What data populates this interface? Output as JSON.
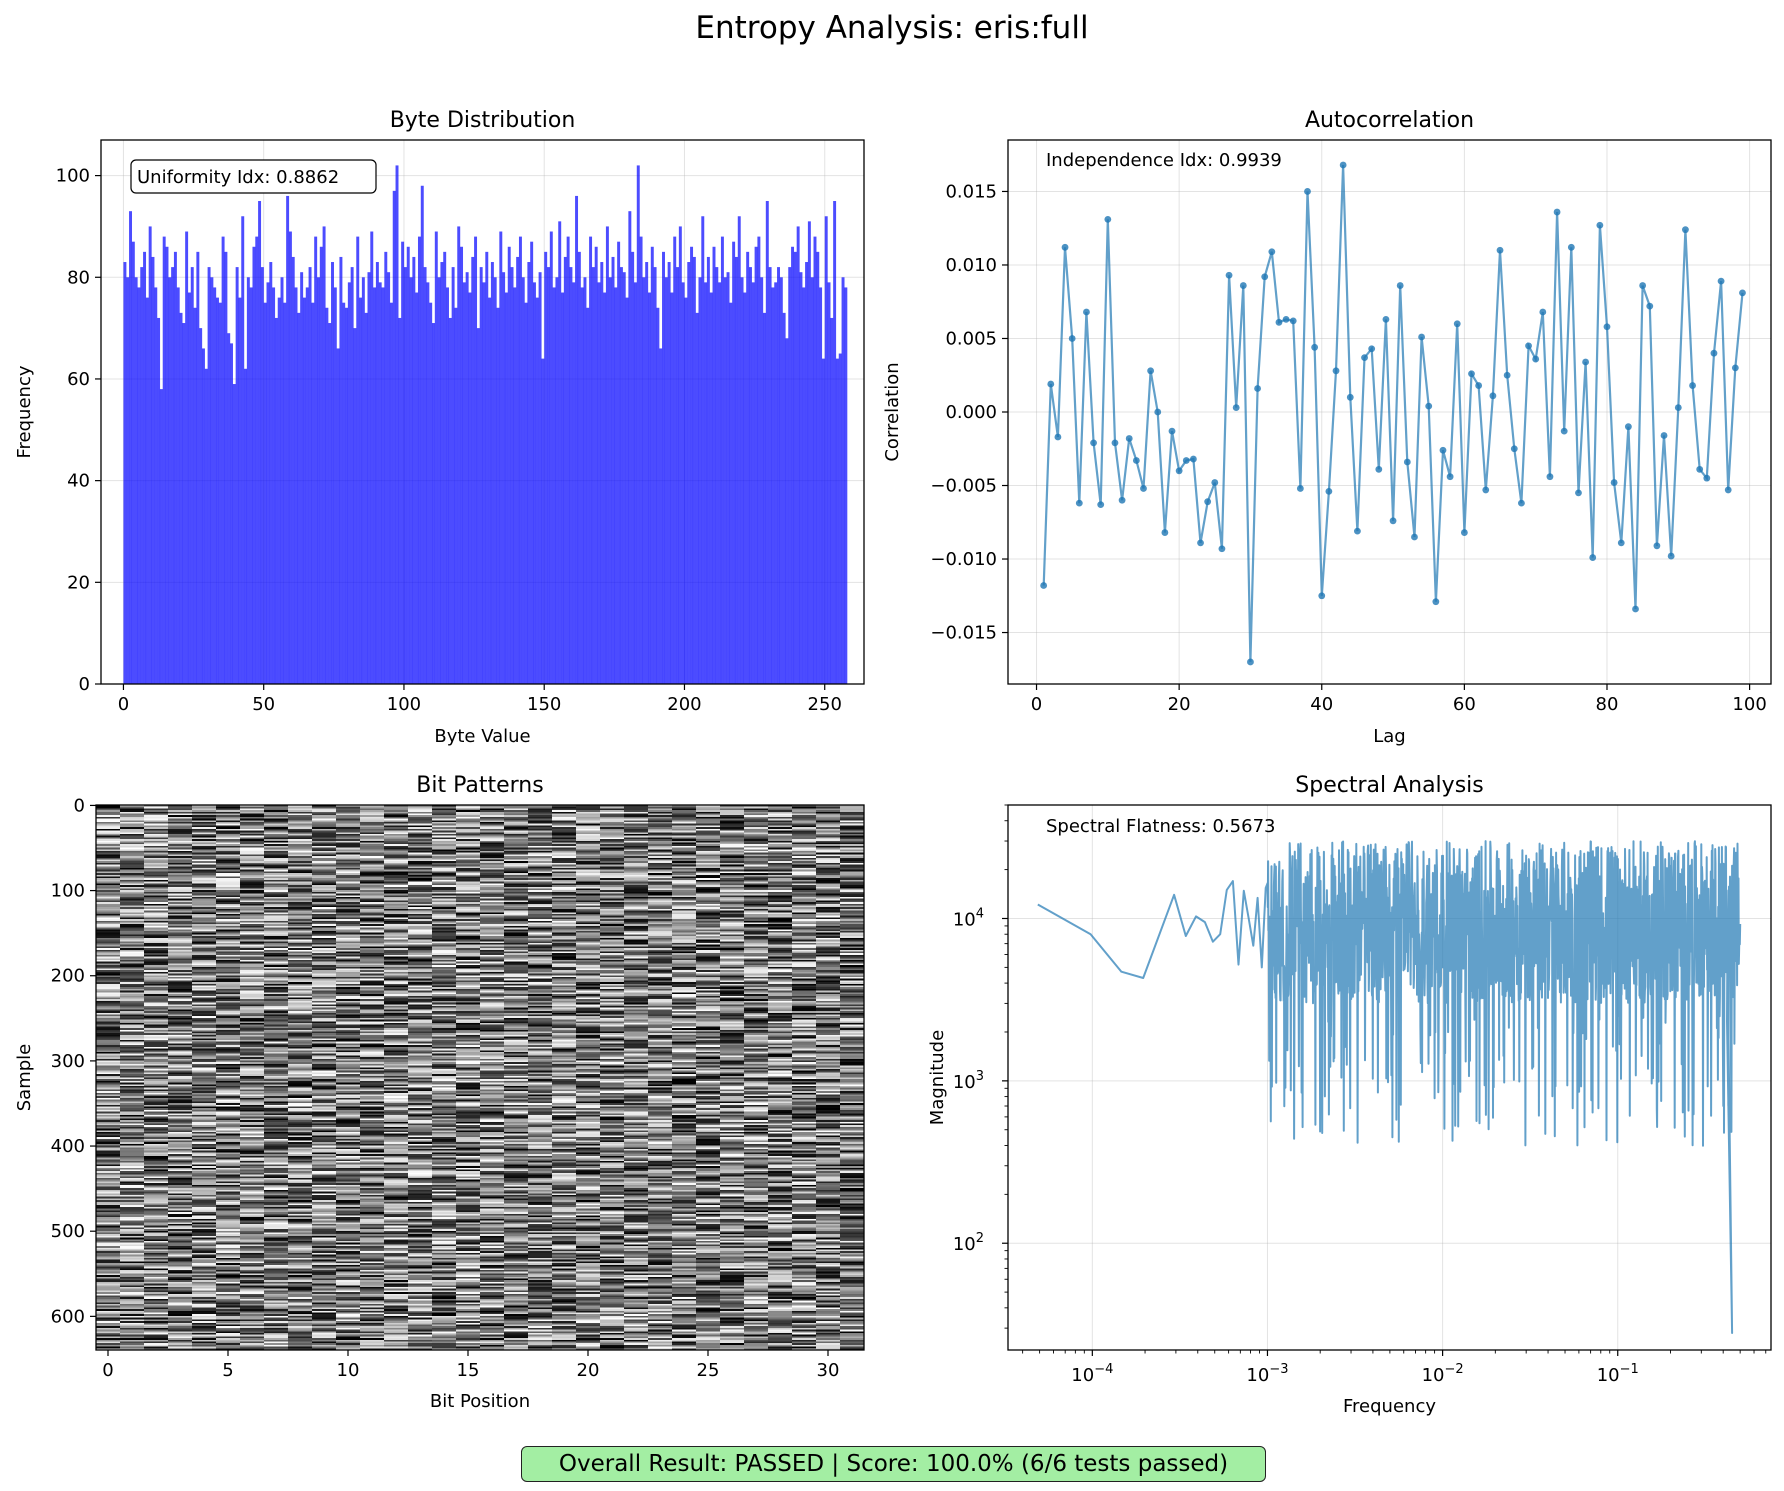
{
  "figure": {
    "title": "Entropy Analysis: eris:full",
    "footer": "Overall Result: PASSED | Score: 100.0% (6/6 tests passed)",
    "colors": {
      "hist": "#0000ff",
      "line": "#1f77b4",
      "result_bg": "#a3eea3"
    }
  },
  "chart_data": [
    {
      "type": "bar",
      "title": "Byte Distribution",
      "xlabel": "Byte Value",
      "ylabel": "Frequency",
      "xlim": [
        -8,
        264
      ],
      "ylim": [
        0,
        107
      ],
      "xticks": [
        0,
        50,
        100,
        150,
        200,
        250
      ],
      "yticks": [
        0,
        20,
        40,
        60,
        80,
        100
      ],
      "grid": true,
      "annotation": "Uniformity Idx: 0.8862",
      "x_start": 0,
      "bin_width": 1,
      "values": [
        83,
        80,
        93,
        87,
        80,
        78,
        82,
        85,
        76,
        90,
        84,
        78,
        72,
        58,
        88,
        86,
        80,
        82,
        85,
        78,
        73,
        71,
        89,
        77,
        82,
        74,
        85,
        70,
        66,
        62,
        82,
        80,
        78,
        76,
        75,
        88,
        85,
        69,
        67,
        59,
        82,
        76,
        92,
        62,
        80,
        78,
        86,
        88,
        95,
        82,
        75,
        79,
        83,
        78,
        72,
        76,
        80,
        75,
        96,
        89,
        84,
        78,
        73,
        81,
        76,
        78,
        82,
        75,
        88,
        80,
        86,
        90,
        74,
        71,
        83,
        78,
        66,
        84,
        75,
        74,
        79,
        82,
        70,
        88,
        76,
        80,
        73,
        81,
        89,
        78,
        83,
        79,
        78,
        85,
        81,
        75,
        97,
        102,
        72,
        87,
        82,
        86,
        80,
        84,
        77,
        88,
        98,
        82,
        79,
        75,
        71,
        89,
        80,
        83,
        85,
        78,
        72,
        82,
        74,
        90,
        86,
        79,
        81,
        77,
        84,
        88,
        70,
        82,
        79,
        85,
        76,
        83,
        80,
        74,
        89,
        81,
        77,
        86,
        82,
        78,
        84,
        88,
        80,
        75,
        83,
        87,
        79,
        76,
        81,
        64,
        85,
        82,
        89,
        78,
        80,
        91,
        77,
        84,
        88,
        82,
        79,
        96,
        85,
        78,
        80,
        74,
        88,
        82,
        86,
        79,
        83,
        77,
        90,
        80,
        84,
        78,
        87,
        82,
        81,
        76,
        93,
        85,
        79,
        102,
        88,
        80,
        83,
        77,
        86,
        82,
        74,
        66,
        85,
        80,
        83,
        77,
        88,
        82,
        90,
        79,
        76,
        83,
        86,
        84,
        73,
        80,
        92,
        79,
        84,
        77,
        86,
        82,
        79,
        88,
        80,
        81,
        75,
        87,
        84,
        92,
        80,
        77,
        85,
        82,
        79,
        86,
        88,
        80,
        73,
        95,
        82,
        78,
        79,
        82,
        80,
        73,
        68,
        82,
        86,
        85,
        90,
        81,
        78,
        83,
        91,
        80,
        88,
        85,
        78,
        64,
        92,
        79,
        72,
        95,
        64,
        65,
        80,
        78
      ],
      "bar_color": "#0000ff"
    },
    {
      "type": "line",
      "title": "Autocorrelation",
      "xlabel": "Lag",
      "ylabel": "Correlation",
      "xlim": [
        -4,
        103
      ],
      "ylim": [
        -0.0185,
        0.0185
      ],
      "xticks": [
        0,
        20,
        40,
        60,
        80,
        100
      ],
      "yticks": [
        -0.015,
        -0.01,
        -0.005,
        0.0,
        0.005,
        0.01,
        0.015
      ],
      "ytick_labels": [
        "−0.015",
        "−0.010",
        "−0.005",
        "0.000",
        "0.005",
        "0.010",
        "0.015"
      ],
      "grid": true,
      "annotation": "Independence Idx: 0.9939",
      "x_start": 1,
      "values": [
        -0.0118,
        0.0019,
        -0.0017,
        0.0112,
        0.005,
        -0.0062,
        0.0068,
        -0.0021,
        -0.0063,
        0.0131,
        -0.0021,
        -0.006,
        -0.0018,
        -0.0033,
        -0.0052,
        0.0028,
        0.0,
        -0.0082,
        -0.0013,
        -0.004,
        -0.0033,
        -0.0032,
        -0.0089,
        -0.0061,
        -0.0048,
        -0.0093,
        0.0093,
        0.0003,
        0.0086,
        -0.017,
        0.0016,
        0.0092,
        0.0109,
        0.0061,
        0.0063,
        0.0062,
        -0.0052,
        0.015,
        0.0044,
        -0.0125,
        -0.0054,
        0.0028,
        0.0168,
        0.001,
        -0.0081,
        0.0037,
        0.0043,
        -0.0039,
        0.0063,
        -0.0074,
        0.0086,
        -0.0034,
        -0.0085,
        0.0051,
        0.0004,
        -0.0129,
        -0.0026,
        -0.0044,
        0.006,
        -0.0082,
        0.0026,
        0.0018,
        -0.0053,
        0.0011,
        0.011,
        0.0025,
        -0.0025,
        -0.0062,
        0.0045,
        0.0036,
        0.0068,
        -0.0044,
        0.0136,
        -0.0013,
        0.0112,
        -0.0055,
        0.0034,
        -0.0099,
        0.0127,
        0.0058,
        -0.0048,
        -0.0089,
        -0.001,
        -0.0134,
        0.0086,
        0.0072,
        -0.0091,
        -0.0016,
        -0.0098,
        0.0003,
        0.0124,
        0.0018,
        -0.0039,
        -0.0045,
        0.004,
        0.0089,
        -0.0053,
        0.003,
        0.0081
      ],
      "line_color": "#1f77b4"
    },
    {
      "type": "heatmap",
      "title": "Bit Patterns",
      "xlabel": "Bit Position",
      "ylabel": "Sample",
      "columns": 32,
      "rows": 640,
      "xticks": [
        0,
        5,
        10,
        15,
        20,
        25,
        30
      ],
      "yticks": [
        0,
        100,
        200,
        300,
        400,
        500,
        600
      ],
      "colormap": "gray"
    },
    {
      "type": "line",
      "title": "Spectral Analysis",
      "xlabel": "Frequency",
      "ylabel": "Magnitude",
      "xscale": "log",
      "yscale": "log",
      "xlim": [
        3.3e-05,
        0.75
      ],
      "ylim": [
        22,
        50000
      ],
      "xticks": [
        0.0001,
        0.001,
        0.01,
        0.1
      ],
      "yticks": [
        100,
        1000,
        10000
      ],
      "xtick_labels": [
        {
          "base": "10",
          "exp": "−4"
        },
        {
          "base": "10",
          "exp": "−3"
        },
        {
          "base": "10",
          "exp": "−2"
        },
        {
          "base": "10",
          "exp": "−1"
        }
      ],
      "ytick_labels": [
        {
          "base": "10",
          "exp": "2"
        },
        {
          "base": "10",
          "exp": "3"
        },
        {
          "base": "10",
          "exp": "4"
        }
      ],
      "grid": true,
      "annotation": "Spectral Flatness: 0.5673",
      "x": [
        4.88e-05,
        9.77e-05,
        0.0001465,
        0.0001953,
        0.000293,
        0.0003418,
        0.0003906,
        0.0004395,
        0.0004883,
        0.0005371,
        0.0005859,
        0.0006348,
        0.0006836,
        0.0007324,
        0.0007813,
        0.0008301,
        0.0008789,
        0.0009277,
        0.0009766
      ],
      "magnitudes": [
        12200,
        8000,
        4700,
        4300,
        14000,
        7800,
        10300,
        9500,
        7200,
        8000,
        15000,
        17000,
        5200,
        14800,
        10000,
        6800,
        13400,
        5000,
        15400
      ],
      "dense_band": {
        "x_from": 0.001,
        "x_to": 0.5,
        "typical_range": [
          3000,
          30000
        ],
        "deepest_dip": 28
      },
      "line_color": "#1f77b4"
    }
  ]
}
